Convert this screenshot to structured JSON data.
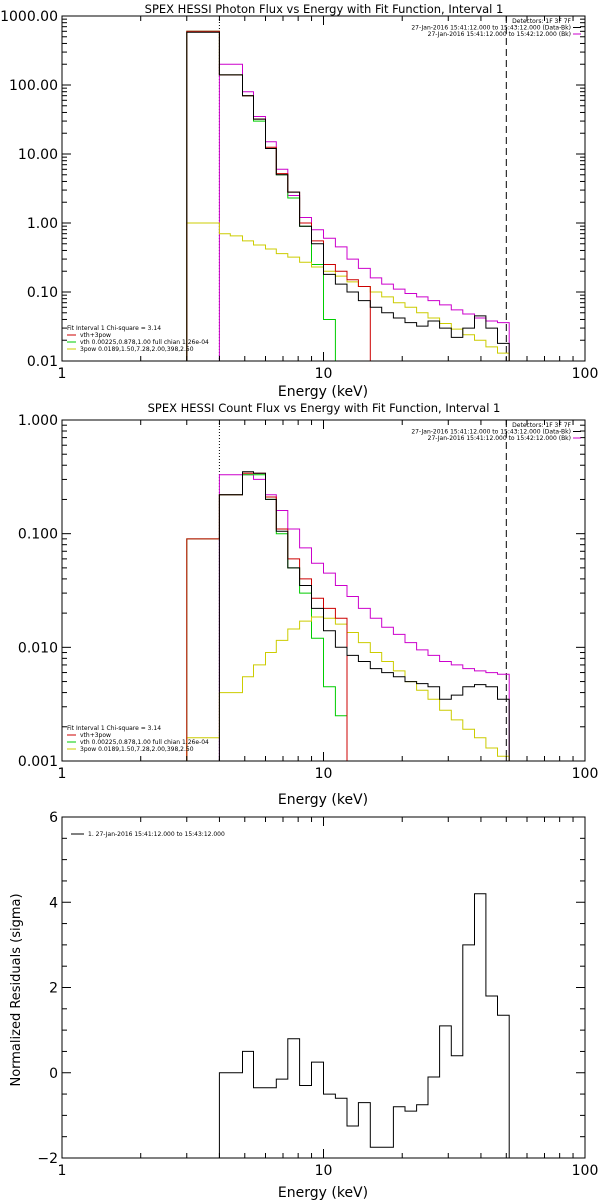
{
  "chart_data": [
    {
      "type": "line",
      "title": "SPEX HESSI Photon Flux vs Energy with Fit Function, Interval 1",
      "xlabel": "Energy (keV)",
      "ylabel": "",
      "x_scale": "log",
      "y_scale": "log",
      "xlim": [
        1,
        100
      ],
      "ylim": [
        0.01,
        1000
      ],
      "x_ticks": [
        {
          "v": 1,
          "label": "1"
        },
        {
          "v": 10,
          "label": "10"
        },
        {
          "v": 100,
          "label": "100"
        }
      ],
      "y_ticks": [
        {
          "v": 0.01,
          "label": "0.01"
        },
        {
          "v": 0.1,
          "label": "0.10"
        },
        {
          "v": 1,
          "label": "1.00"
        },
        {
          "v": 10,
          "label": "10.00"
        },
        {
          "v": 100,
          "label": "100.00"
        },
        {
          "v": 1000,
          "label": "1000.00"
        }
      ],
      "vlines": [
        {
          "x": 4,
          "style": "dotted"
        },
        {
          "x": 50,
          "style": "dashed"
        }
      ],
      "legend_top": [
        {
          "text": "Detectors: 1F 3F 7F",
          "color": ""
        },
        {
          "text": "27-Jan-2016 15:41:12.000 to 15:43:12.000 (Data-Bk)",
          "color": "#000000"
        },
        {
          "text": "27-Jan-2016 15:41:12.000 to 15:42:12.000 (Bk)",
          "color": "#cc00cc"
        }
      ],
      "legend_bottom": [
        {
          "text": "Fit Interval 1   Chi-square = 3.14",
          "color": ""
        },
        {
          "text": "vth+3pow",
          "color": "#cc0000"
        },
        {
          "text": "vth 0.00225,0.878,1.00  full chian 1.26e-04",
          "color": "#00cc00"
        },
        {
          "text": "3pow 0.0189,1.50,7.28,2.00,398,2.50",
          "color": "#cccc00"
        }
      ],
      "series": [
        {
          "color": "#cc00cc",
          "edges": [
            4.0,
            4.4,
            4.9,
            5.4,
            6.0,
            6.6,
            7.3,
            8.1,
            9.0,
            10,
            11.1,
            12.3,
            13.6,
            15.1,
            16.7,
            18.5,
            20.5,
            22.7,
            25.1,
            27.8,
            30.8,
            34.1,
            37.8,
            41.8,
            46.3,
            51.3
          ],
          "values": [
            200,
            200,
            80,
            35,
            15,
            6,
            2.5,
            1.2,
            0.8,
            0.6,
            0.45,
            0.3,
            0.22,
            0.16,
            0.13,
            0.11,
            0.095,
            0.085,
            0.075,
            0.065,
            0.055,
            0.048,
            0.042,
            0.038,
            0.036
          ]
        },
        {
          "color": "#00cc00",
          "edges": [
            3.0,
            3.5,
            4.0,
            4.4,
            4.9,
            5.4,
            6.0,
            6.6,
            7.3,
            8.1,
            9.0,
            10,
            11.1,
            12.3
          ],
          "values": [
            600,
            600,
            140,
            140,
            70,
            30,
            12,
            5,
            2.3,
            0.9,
            0.25,
            0.04,
            0.01
          ]
        },
        {
          "color": "#cccc00",
          "edges": [
            3.0,
            3.5,
            4.0,
            4.4,
            4.9,
            5.4,
            6.0,
            6.6,
            7.3,
            8.1,
            9.0,
            10,
            11.1,
            12.3,
            13.6,
            15.1,
            16.7,
            18.5,
            20.5,
            22.7,
            25.1,
            27.8,
            30.8,
            34.1,
            37.8,
            41.8,
            46.3,
            51.3
          ],
          "values": [
            1.0,
            1.0,
            0.7,
            0.65,
            0.55,
            0.48,
            0.42,
            0.36,
            0.32,
            0.27,
            0.23,
            0.2,
            0.17,
            0.14,
            0.12,
            0.1,
            0.085,
            0.07,
            0.06,
            0.05,
            0.042,
            0.035,
            0.029,
            0.024,
            0.02,
            0.016,
            0.013
          ]
        },
        {
          "color": "#cc0000",
          "edges": [
            3.0,
            3.5,
            4.0,
            4.4,
            4.9,
            5.4,
            6.0,
            6.6,
            7.3,
            8.1,
            9.0,
            10,
            11.1,
            12.3,
            13.6,
            15.1
          ],
          "values": [
            600,
            600,
            140,
            140,
            70,
            32,
            12.5,
            5.2,
            2.8,
            1.0,
            0.55,
            0.25,
            0.2,
            0.15,
            0.12
          ]
        },
        {
          "color": "#000000",
          "edges": [
            3.0,
            3.5,
            4.0,
            4.4,
            4.9,
            5.4,
            6.0,
            6.6,
            7.3,
            8.1,
            9.0,
            10,
            11.1,
            12.3,
            13.6,
            15.1,
            16.7,
            18.5,
            20.5,
            22.7,
            25.1,
            27.8,
            30.8,
            34.1,
            37.8,
            41.8,
            46.3,
            51.3
          ],
          "values": [
            580,
            580,
            140,
            140,
            70,
            32,
            12,
            5,
            2.8,
            0.9,
            0.5,
            0.18,
            0.13,
            0.1,
            0.075,
            0.06,
            0.05,
            0.042,
            0.036,
            0.032,
            0.038,
            0.03,
            0.022,
            0.03,
            0.045,
            0.03,
            0.018
          ]
        }
      ]
    },
    {
      "type": "line",
      "title": "SPEX HESSI Count Flux vs Energy with Fit Function, Interval 1",
      "xlabel": "Energy (keV)",
      "ylabel": "",
      "x_scale": "log",
      "y_scale": "log",
      "xlim": [
        1,
        100
      ],
      "ylim": [
        0.001,
        1
      ],
      "x_ticks": [
        {
          "v": 1,
          "label": "1"
        },
        {
          "v": 10,
          "label": "10"
        },
        {
          "v": 100,
          "label": "100"
        }
      ],
      "y_ticks": [
        {
          "v": 0.001,
          "label": "0.001"
        },
        {
          "v": 0.01,
          "label": "0.010"
        },
        {
          "v": 0.1,
          "label": "0.100"
        },
        {
          "v": 1,
          "label": "1.000"
        }
      ],
      "vlines": [
        {
          "x": 4,
          "style": "dotted"
        },
        {
          "x": 50,
          "style": "dashed"
        }
      ],
      "legend_top": [
        {
          "text": "Detectors: 1F 3F 7F",
          "color": ""
        },
        {
          "text": "27-Jan-2016 15:41:12.000 to 15:43:12.000 (Data-Bk)",
          "color": "#000000"
        },
        {
          "text": "27-Jan-2016 15:41:12.000 to 15:42:12.000 (Bk)",
          "color": "#cc00cc"
        }
      ],
      "legend_bottom": [
        {
          "text": "Fit Interval 1   Chi-square = 3.14",
          "color": ""
        },
        {
          "text": "vth+3pow",
          "color": "#cc0000"
        },
        {
          "text": "vth 0.00225,0.878,1.00  full chian 1.26e-04",
          "color": "#00cc00"
        },
        {
          "text": "3pow 0.0189,1.50,7.28,2.00,398,2.50",
          "color": "#cccc00"
        }
      ],
      "series": [
        {
          "color": "#cc00cc",
          "edges": [
            4.0,
            4.4,
            4.9,
            5.4,
            6.0,
            6.6,
            7.3,
            8.1,
            9.0,
            10,
            11.1,
            12.3,
            13.6,
            15.1,
            16.7,
            18.5,
            20.5,
            22.7,
            25.1,
            27.8,
            30.8,
            34.1,
            37.8,
            41.8,
            46.3,
            51.3
          ],
          "values": [
            0.33,
            0.33,
            0.33,
            0.3,
            0.22,
            0.16,
            0.11,
            0.075,
            0.055,
            0.045,
            0.035,
            0.028,
            0.022,
            0.018,
            0.015,
            0.013,
            0.011,
            0.0095,
            0.0085,
            0.0075,
            0.007,
            0.0065,
            0.0062,
            0.006,
            0.0058
          ]
        },
        {
          "color": "#00cc00",
          "edges": [
            3.0,
            3.5,
            4.0,
            4.4,
            4.9,
            5.4,
            6.0,
            6.6,
            7.3,
            8.1,
            9.0,
            10,
            11.1,
            12.3
          ],
          "values": [
            0.09,
            0.09,
            0.22,
            0.22,
            0.33,
            0.33,
            0.2,
            0.1,
            0.05,
            0.03,
            0.012,
            0.0045,
            0.0025
          ]
        },
        {
          "color": "#cccc00",
          "edges": [
            3.0,
            3.5,
            4.0,
            4.4,
            4.9,
            5.4,
            6.0,
            6.6,
            7.3,
            8.1,
            9.0,
            10,
            11.1,
            12.3,
            13.6,
            15.1,
            16.7,
            18.5,
            20.5,
            22.7,
            25.1,
            27.8,
            30.8,
            34.1,
            37.8,
            41.8,
            46.3,
            51.3,
            56.8,
            62.9
          ],
          "values": [
            0.0016,
            0.0016,
            0.004,
            0.004,
            0.0055,
            0.007,
            0.009,
            0.0115,
            0.0145,
            0.017,
            0.0185,
            0.018,
            0.016,
            0.0135,
            0.011,
            0.009,
            0.0075,
            0.0062,
            0.005,
            0.0042,
            0.0035,
            0.0028,
            0.0023,
            0.0019,
            0.0016,
            0.0013,
            0.0011,
            0.001,
            0.0009
          ]
        },
        {
          "color": "#cc0000",
          "edges": [
            3.0,
            3.5,
            4.0,
            4.4,
            4.9,
            5.4,
            6.0,
            6.6,
            7.3,
            8.1,
            9.0,
            10,
            11.1,
            12.3
          ],
          "values": [
            0.09,
            0.09,
            0.22,
            0.22,
            0.34,
            0.34,
            0.21,
            0.11,
            0.06,
            0.04,
            0.027,
            0.022,
            0.018
          ]
        },
        {
          "color": "#000000",
          "edges": [
            4.0,
            4.4,
            4.9,
            5.4,
            6.0,
            6.6,
            7.3,
            8.1,
            9.0,
            10,
            11.1,
            12.3,
            13.6,
            15.1,
            16.7,
            18.5,
            20.5,
            22.7,
            25.1,
            27.8,
            30.8,
            34.1,
            37.8,
            41.8,
            46.3,
            51.3
          ],
          "values": [
            0.22,
            0.22,
            0.35,
            0.34,
            0.2,
            0.105,
            0.05,
            0.035,
            0.022,
            0.014,
            0.01,
            0.0085,
            0.0075,
            0.0065,
            0.006,
            0.0055,
            0.005,
            0.0048,
            0.0045,
            0.0035,
            0.0038,
            0.0045,
            0.0047,
            0.0045,
            0.0035
          ]
        }
      ]
    },
    {
      "type": "line",
      "title": "",
      "xlabel": "Energy (keV)",
      "ylabel": "Normalized Residuals (sigma)",
      "x_scale": "log",
      "y_scale": "linear",
      "xlim": [
        1,
        100
      ],
      "ylim": [
        -2,
        6
      ],
      "x_ticks": [
        {
          "v": 1,
          "label": "1"
        },
        {
          "v": 10,
          "label": "10"
        },
        {
          "v": 100,
          "label": "100"
        }
      ],
      "y_ticks": [
        {
          "v": -2,
          "label": "−2"
        },
        {
          "v": 0,
          "label": "0"
        },
        {
          "v": 2,
          "label": "2"
        },
        {
          "v": 4,
          "label": "4"
        },
        {
          "v": 6,
          "label": "6"
        }
      ],
      "vlines": [],
      "legend_top": [],
      "legend_bottom": [],
      "legend_corner": {
        "text": "1. 27-Jan-2016 15:41:12.000 to 15:43:12.000",
        "color": "#000000"
      },
      "series": [
        {
          "color": "#000000",
          "edges": [
            4.0,
            4.4,
            4.9,
            5.4,
            6.0,
            6.6,
            7.3,
            8.1,
            9.0,
            10,
            11.1,
            12.3,
            13.6,
            15.1,
            16.7,
            18.5,
            20.5,
            22.7,
            25.1,
            27.8,
            30.8,
            34.1,
            37.8,
            41.8,
            46.3,
            51.3
          ],
          "values": [
            0.0,
            0.0,
            0.5,
            -0.35,
            -0.35,
            -0.15,
            0.8,
            -0.3,
            0.25,
            -0.5,
            -0.6,
            -1.25,
            -0.7,
            -1.75,
            -1.75,
            -0.8,
            -0.9,
            -0.75,
            -0.1,
            1.1,
            0.4,
            3.0,
            4.2,
            1.8,
            1.35
          ],
          "close": "down"
        }
      ]
    }
  ]
}
